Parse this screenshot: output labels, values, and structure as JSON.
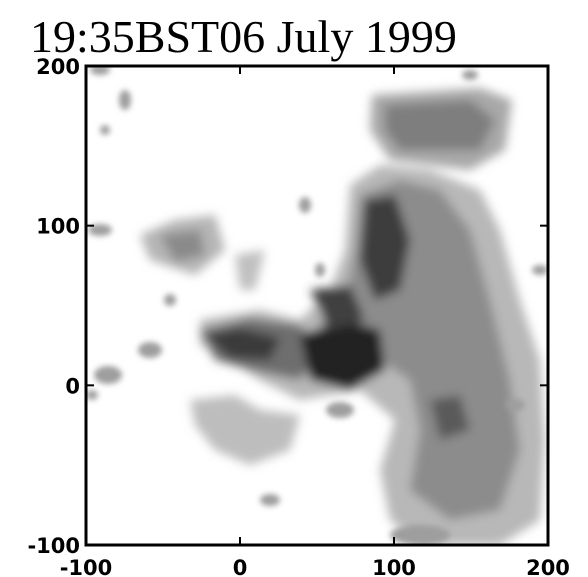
{
  "chart_data": {
    "type": "contour",
    "title": "19:35BST06 July 1999",
    "xlim": [
      -100,
      200
    ],
    "ylim": [
      -100,
      200
    ],
    "xticks": [
      -100,
      0,
      100,
      200
    ],
    "yticks": [
      -100,
      0,
      100,
      200
    ]
  }
}
